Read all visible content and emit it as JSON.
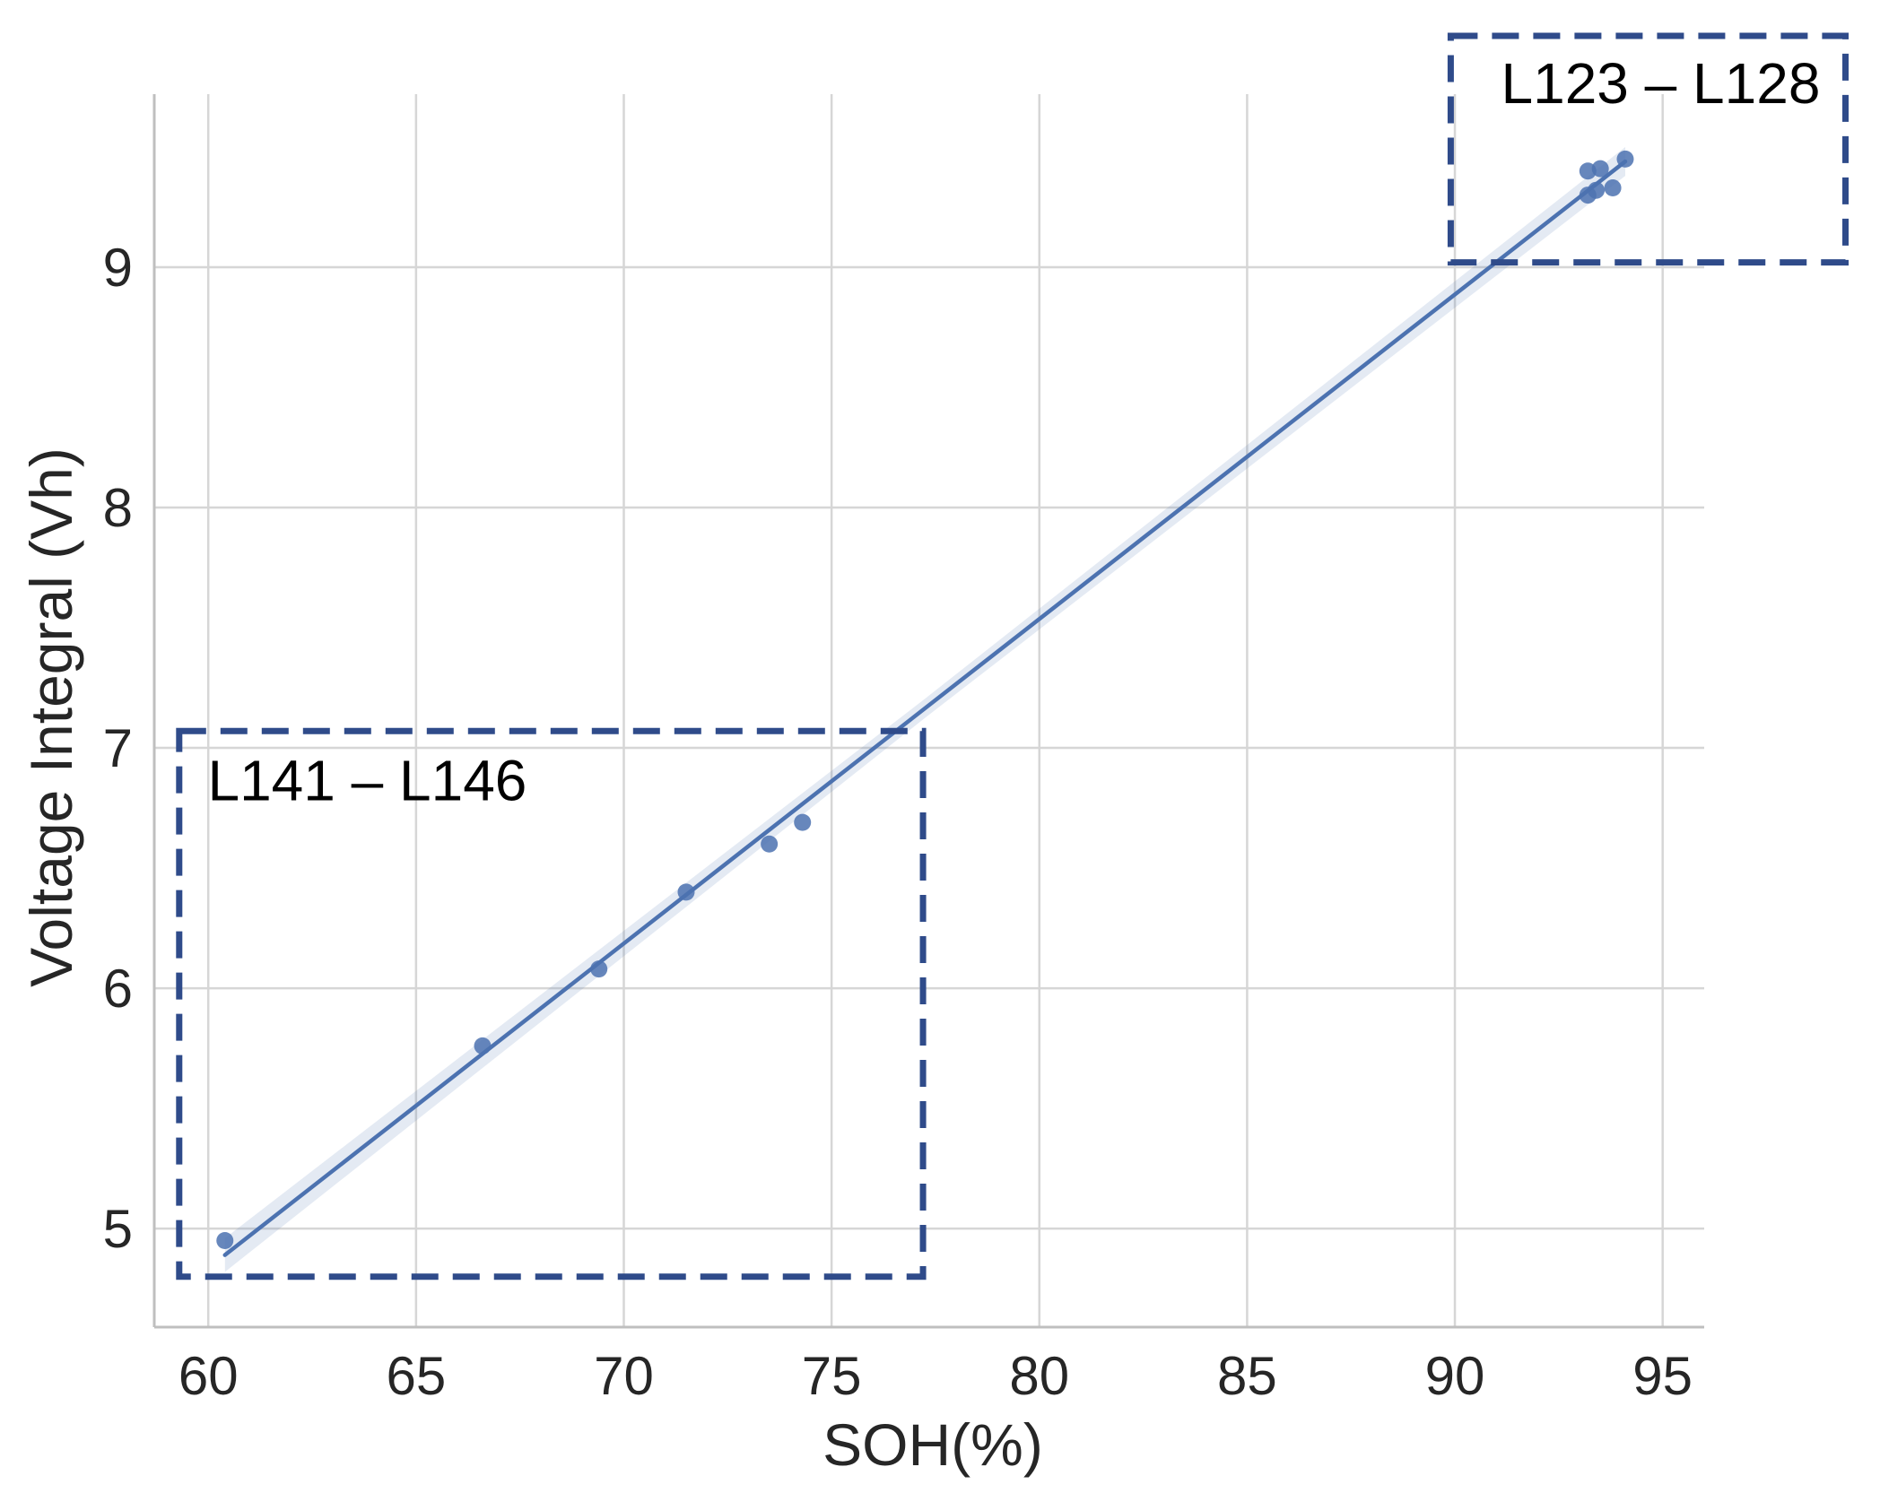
{
  "chart_data": {
    "type": "scatter",
    "title": "",
    "xlabel": "SOH(%)",
    "ylabel": "Voltage Integral  (Vh)",
    "xlim": [
      58.7,
      96.0
    ],
    "ylim": [
      4.59,
      9.72
    ],
    "xticks": [
      60,
      65,
      70,
      75,
      80,
      85,
      90,
      95
    ],
    "yticks": [
      5,
      6,
      7,
      8,
      9
    ],
    "xtick_labels": [
      "60",
      "65",
      "70",
      "75",
      "80",
      "85",
      "90",
      "95"
    ],
    "ytick_labels": [
      "5",
      "6",
      "7",
      "8",
      "9"
    ],
    "grid": true,
    "series": [
      {
        "points": [
          {
            "x": 60.4,
            "y": 4.95
          },
          {
            "x": 66.6,
            "y": 5.76
          },
          {
            "x": 69.4,
            "y": 6.08
          },
          {
            "x": 71.5,
            "y": 6.4
          },
          {
            "x": 73.5,
            "y": 6.6
          },
          {
            "x": 74.3,
            "y": 6.69
          },
          {
            "x": 93.2,
            "y": 9.3
          },
          {
            "x": 93.2,
            "y": 9.4
          },
          {
            "x": 93.4,
            "y": 9.32
          },
          {
            "x": 93.5,
            "y": 9.41
          },
          {
            "x": 93.8,
            "y": 9.33
          },
          {
            "x": 94.1,
            "y": 9.45
          }
        ],
        "regression": {
          "x": [
            60.4,
            94.1
          ],
          "y": [
            4.89,
            9.44
          ],
          "ci_halfwidth": [
            0.07,
            0.04,
            0.06
          ]
        }
      }
    ],
    "annotations": [
      {
        "label": "L141 – L146",
        "x_range": [
          59.3,
          77.2
        ],
        "y_range": [
          4.8,
          7.07
        ]
      },
      {
        "label": "L123 – L128",
        "x_range": [
          89.9,
          99.4
        ],
        "y_range": [
          9.02,
          9.97
        ]
      }
    ],
    "colors": {
      "points": "#4c72b0",
      "line": "#4c72b0",
      "band": "#4c72b0",
      "box": "#2f4b8a",
      "grid": "#d6d6d6",
      "axis": "#bfbfbf"
    }
  }
}
